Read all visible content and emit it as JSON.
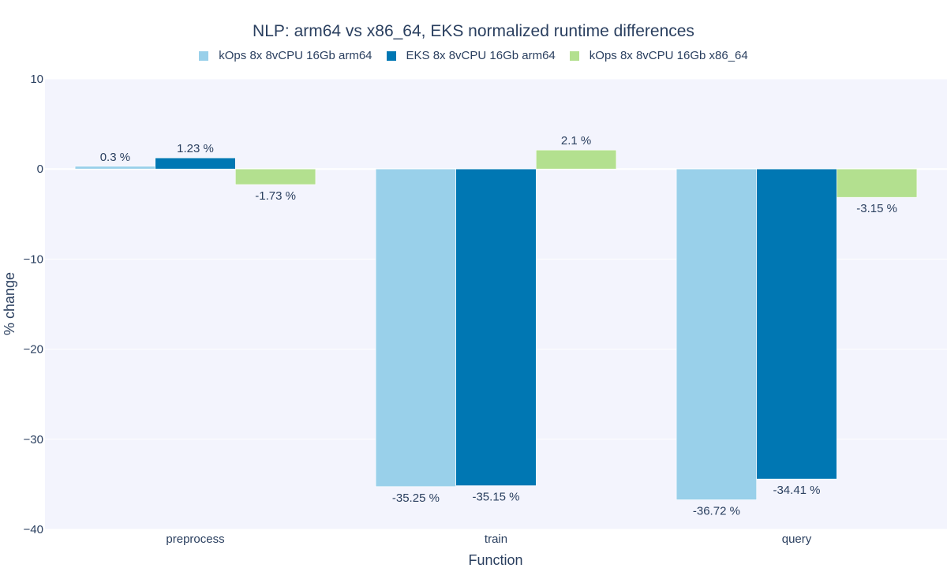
{
  "chart_data": {
    "type": "bar",
    "title": "NLP: arm64 vs x86_64, EKS normalized runtime differences",
    "xlabel": "Function",
    "ylabel": "% change",
    "categories": [
      "preprocess",
      "train",
      "query"
    ],
    "ylim": [
      -40,
      10
    ],
    "yticks": [
      10,
      0,
      -10,
      -20,
      -30,
      -40
    ],
    "ytick_labels": [
      "10",
      "0",
      "−10",
      "−20",
      "−30",
      "−40"
    ],
    "grid": true,
    "legend_position": "top-center",
    "series": [
      {
        "name": "kOps 8x 8vCPU 16Gb arm64",
        "color": "#99d0ea",
        "values": [
          0.3,
          -35.25,
          -36.72
        ],
        "labels": [
          "0.3 %",
          "-35.25 %",
          "-36.72 %"
        ]
      },
      {
        "name": "EKS 8x 8vCPU 16Gb arm64",
        "color": "#0077b3",
        "values": [
          1.23,
          -35.15,
          -34.41
        ],
        "labels": [
          "1.23 %",
          "-35.15 %",
          "-34.41 %"
        ]
      },
      {
        "name": "kOps 8x 8vCPU 16Gb x86_64",
        "color": "#b3e08f",
        "values": [
          -1.73,
          2.1,
          -3.15
        ],
        "labels": [
          "-1.73 %",
          "2.1 %",
          "-3.15 %"
        ]
      }
    ]
  },
  "colors": {
    "plot_background": "#f3f4fd",
    "gridline": "#ffffff",
    "text": "#2a3f5f"
  }
}
